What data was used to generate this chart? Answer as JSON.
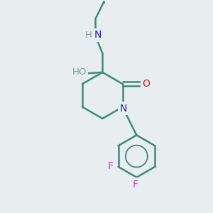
{
  "background_color": "#e8edf0",
  "bond_color": "#3d8b7a",
  "N_color": "#2020cc",
  "O_color": "#cc2020",
  "F_color": "#cc44cc",
  "H_color": "#7a9a9a",
  "line_width": 1.8,
  "figsize": [
    3.0,
    3.0
  ],
  "dpi": 100,
  "xlim": [
    0,
    10
  ],
  "ylim": [
    0,
    10.5
  ]
}
